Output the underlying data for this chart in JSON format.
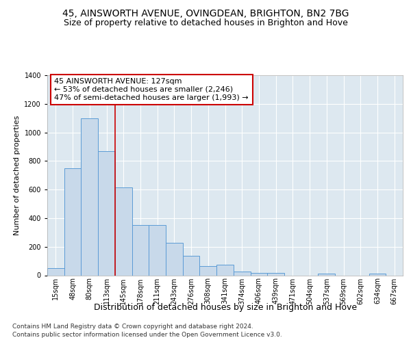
{
  "title": "45, AINSWORTH AVENUE, OVINGDEAN, BRIGHTON, BN2 7BG",
  "subtitle": "Size of property relative to detached houses in Brighton and Hove",
  "xlabel": "Distribution of detached houses by size in Brighton and Hove",
  "ylabel": "Number of detached properties",
  "footnote1": "Contains HM Land Registry data © Crown copyright and database right 2024.",
  "footnote2": "Contains public sector information licensed under the Open Government Licence v3.0.",
  "categories": [
    "15sqm",
    "48sqm",
    "80sqm",
    "113sqm",
    "145sqm",
    "178sqm",
    "211sqm",
    "243sqm",
    "276sqm",
    "308sqm",
    "341sqm",
    "374sqm",
    "406sqm",
    "439sqm",
    "471sqm",
    "504sqm",
    "537sqm",
    "569sqm",
    "602sqm",
    "634sqm",
    "667sqm"
  ],
  "values": [
    52,
    750,
    1100,
    870,
    615,
    350,
    350,
    228,
    135,
    65,
    72,
    25,
    18,
    15,
    0,
    0,
    12,
    0,
    0,
    14,
    0
  ],
  "bar_color": "#c8d9ea",
  "bar_edge_color": "#5b9bd5",
  "vline_x": 3.5,
  "annotation_text": "45 AINSWORTH AVENUE: 127sqm\n← 53% of detached houses are smaller (2,246)\n47% of semi-detached houses are larger (1,993) →",
  "annotation_box_facecolor": "#ffffff",
  "annotation_box_edgecolor": "#cc0000",
  "vline_color": "#cc0000",
  "fig_bg_color": "#ffffff",
  "plot_bg_color": "#dde8f0",
  "ylim": [
    0,
    1400
  ],
  "yticks": [
    0,
    200,
    400,
    600,
    800,
    1000,
    1200,
    1400
  ],
  "title_fontsize": 10,
  "subtitle_fontsize": 9,
  "ylabel_fontsize": 8,
  "xlabel_fontsize": 9,
  "tick_fontsize": 7,
  "annotation_fontsize": 8,
  "footnote_fontsize": 6.5
}
